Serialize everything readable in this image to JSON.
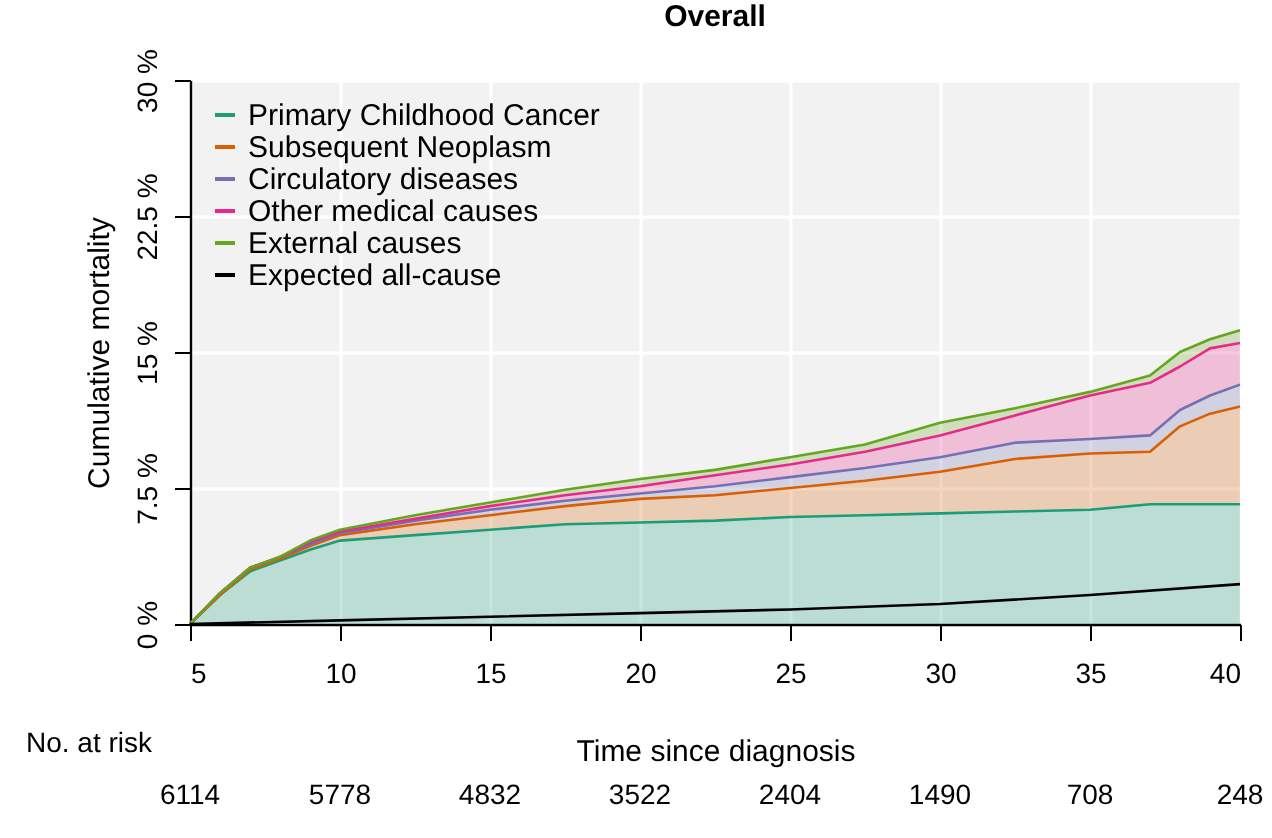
{
  "chart_data": {
    "type": "area",
    "title": "Overall",
    "xlabel": "Time since diagnosis",
    "ylabel": "Cumulative mortality",
    "stacked": true,
    "grid": true,
    "legend": "top left",
    "x": [
      5,
      6,
      7,
      8,
      9,
      10,
      12.5,
      15,
      17.5,
      20,
      22.5,
      25,
      27.5,
      30,
      32.5,
      35,
      37,
      38,
      39,
      40
    ],
    "xlim": [
      5,
      40
    ],
    "xticks": [
      5,
      10,
      15,
      20,
      25,
      30,
      35,
      40
    ],
    "ylim": [
      0,
      30
    ],
    "yticks": [
      {
        "value": 0,
        "label": "0 %"
      },
      {
        "value": 7.5,
        "label": "7.5 %"
      },
      {
        "value": 15,
        "label": "15 %"
      },
      {
        "value": 22.5,
        "label": "22.5 %"
      },
      {
        "value": 30,
        "label": "30 %"
      }
    ],
    "series": [
      {
        "name": "Primary Childhood Cancer",
        "color": "#1b9e77",
        "values": [
          0,
          1.6,
          2.9,
          3.5,
          4.1,
          4.6,
          4.9,
          5.2,
          5.5,
          5.6,
          5.7,
          5.9,
          6.0,
          6.1,
          6.2,
          6.3,
          6.6,
          6.6,
          6.6,
          6.6
        ]
      },
      {
        "name": "Subsequent Neoplasm",
        "color": "#d95f02",
        "values": [
          0,
          0,
          0.1,
          0.1,
          0.2,
          0.3,
          0.6,
          0.8,
          1.0,
          1.3,
          1.4,
          1.6,
          1.9,
          2.3,
          2.9,
          3.1,
          2.9,
          4.3,
          5.0,
          5.4
        ]
      },
      {
        "name": "Circulatory diseases",
        "color": "#7570b3",
        "values": [
          0,
          0.1,
          0.1,
          0.1,
          0.1,
          0.1,
          0.2,
          0.3,
          0.3,
          0.3,
          0.5,
          0.6,
          0.7,
          0.8,
          0.9,
          0.8,
          0.9,
          0.9,
          1.0,
          1.2
        ]
      },
      {
        "name": "Other medical causes",
        "color": "#e7298a",
        "values": [
          0,
          0,
          0,
          0,
          0.1,
          0.1,
          0.1,
          0.2,
          0.3,
          0.4,
          0.6,
          0.7,
          0.9,
          1.2,
          1.5,
          2.4,
          2.9,
          2.4,
          2.6,
          2.3
        ]
      },
      {
        "name": "External causes",
        "color": "#66a61e",
        "values": [
          0,
          0,
          0,
          0,
          0.1,
          0.1,
          0.2,
          0.2,
          0.3,
          0.4,
          0.3,
          0.4,
          0.4,
          0.7,
          0.4,
          0.2,
          0.4,
          0.8,
          0.5,
          0.7
        ]
      },
      {
        "name": "Expected all-cause",
        "type": "line",
        "color": "#000000",
        "x": [
          5,
          10,
          15,
          20,
          25,
          30,
          35,
          40
        ],
        "values": [
          0,
          0.2,
          0.4,
          0.6,
          0.8,
          1.1,
          1.6,
          2.2
        ]
      }
    ],
    "annotations": [
      "No. at risk",
      "6114",
      "5778",
      "4832",
      "3522",
      "2404",
      "1490",
      "708",
      "248"
    ]
  }
}
